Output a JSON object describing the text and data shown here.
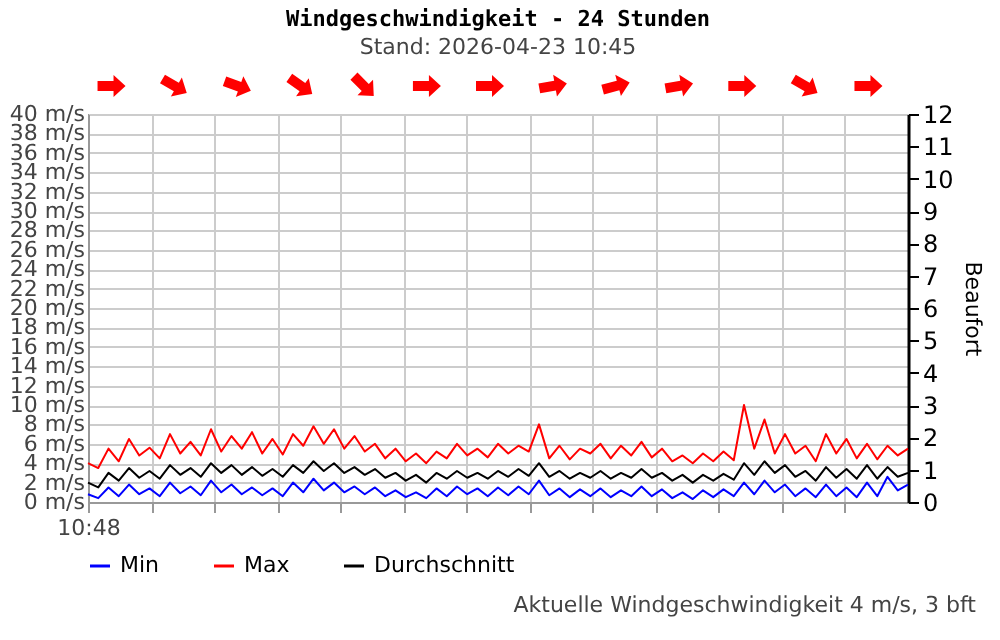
{
  "chart_data": {
    "type": "line",
    "title": "Windgeschwindigkeit - 24 Stunden",
    "subtitle": "Stand: 2026-04-23 10:45",
    "y2label": "Beaufort",
    "annotations": [
      "Aktuelle Windgeschwindigkeit 4 m/s, 3 bft"
    ],
    "categories": [
      "10:48",
      null,
      null,
      null,
      null,
      null,
      null,
      null,
      null,
      null,
      null,
      null,
      null,
      null,
      null,
      null,
      null,
      null,
      null,
      null,
      null,
      null,
      null,
      null,
      null,
      null,
      null,
      null,
      null,
      null,
      null,
      null,
      null,
      null,
      null,
      null,
      null,
      null,
      null,
      null,
      null,
      null,
      null,
      null,
      null,
      null,
      null,
      null,
      null,
      null,
      null,
      null,
      null,
      null,
      null,
      null,
      null,
      null,
      null,
      null,
      null,
      null,
      null,
      null,
      null,
      null,
      null,
      null,
      null,
      null,
      null,
      null,
      null,
      null,
      null,
      null,
      null,
      null,
      null,
      null,
      null
    ],
    "series": [
      {
        "name": "Min",
        "color": "#0000ff",
        "values": [
          0.8,
          0.4,
          1.5,
          0.6,
          1.8,
          0.8,
          1.4,
          0.6,
          2.0,
          0.9,
          1.6,
          0.7,
          2.2,
          1.0,
          1.8,
          0.8,
          1.5,
          0.7,
          1.4,
          0.6,
          2.0,
          1.0,
          2.4,
          1.2,
          2.0,
          1.0,
          1.6,
          0.8,
          1.5,
          0.6,
          1.2,
          0.5,
          1.0,
          0.4,
          1.4,
          0.6,
          1.6,
          0.8,
          1.4,
          0.6,
          1.5,
          0.7,
          1.6,
          0.8,
          2.2,
          0.7,
          1.4,
          0.5,
          1.3,
          0.6,
          1.4,
          0.5,
          1.2,
          0.6,
          1.6,
          0.6,
          1.3,
          0.4,
          1.0,
          0.3,
          1.2,
          0.5,
          1.3,
          0.6,
          2.0,
          0.8,
          2.2,
          1.0,
          1.8,
          0.6,
          1.4,
          0.5,
          1.8,
          0.6,
          1.5,
          0.5,
          2.0,
          0.6,
          2.6,
          1.2,
          1.8
        ]
      },
      {
        "name": "Max",
        "color": "#ff0000",
        "values": [
          4.0,
          3.5,
          5.5,
          4.2,
          6.5,
          4.8,
          5.6,
          4.5,
          7.0,
          5.0,
          6.2,
          4.8,
          7.5,
          5.2,
          6.8,
          5.5,
          7.2,
          5.0,
          6.5,
          4.9,
          7.0,
          5.8,
          7.8,
          6.0,
          7.5,
          5.5,
          6.8,
          5.2,
          6.0,
          4.5,
          5.5,
          4.2,
          5.0,
          4.0,
          5.2,
          4.5,
          6.0,
          4.8,
          5.5,
          4.6,
          6.0,
          5.0,
          5.8,
          5.2,
          8.0,
          4.5,
          5.8,
          4.4,
          5.5,
          5.0,
          6.0,
          4.5,
          5.8,
          4.8,
          6.2,
          4.6,
          5.5,
          4.2,
          4.8,
          4.0,
          5.0,
          4.2,
          5.2,
          4.3,
          10.0,
          5.5,
          8.5,
          5.0,
          7.0,
          5.0,
          5.8,
          4.2,
          7.0,
          5.0,
          6.5,
          4.5,
          6.0,
          4.4,
          5.8,
          4.8,
          5.5
        ]
      },
      {
        "name": "Durchschnitt",
        "color": "#000000",
        "values": [
          2.0,
          1.5,
          3.0,
          2.2,
          3.5,
          2.5,
          3.2,
          2.4,
          3.8,
          2.8,
          3.5,
          2.6,
          4.0,
          3.0,
          3.8,
          2.8,
          3.6,
          2.7,
          3.4,
          2.6,
          3.8,
          3.0,
          4.2,
          3.2,
          4.0,
          3.0,
          3.6,
          2.8,
          3.4,
          2.5,
          3.0,
          2.2,
          2.8,
          2.0,
          3.0,
          2.4,
          3.2,
          2.5,
          3.0,
          2.4,
          3.2,
          2.6,
          3.4,
          2.7,
          4.0,
          2.6,
          3.2,
          2.4,
          3.0,
          2.5,
          3.2,
          2.4,
          3.0,
          2.5,
          3.4,
          2.5,
          3.0,
          2.2,
          2.8,
          2.0,
          2.8,
          2.2,
          2.9,
          2.3,
          4.0,
          2.8,
          4.2,
          3.0,
          3.8,
          2.6,
          3.2,
          2.2,
          3.6,
          2.5,
          3.4,
          2.4,
          3.8,
          2.4,
          3.6,
          2.6,
          3.0
        ]
      }
    ],
    "ylim": [
      0,
      40
    ],
    "yticks": [
      {
        "value": 0,
        "label": "0 m/s"
      },
      {
        "value": 2,
        "label": "2 m/s"
      },
      {
        "value": 4,
        "label": "4 m/s"
      },
      {
        "value": 6,
        "label": "6 m/s"
      },
      {
        "value": 8,
        "label": "8 m/s"
      },
      {
        "value": 10,
        "label": "10 m/s"
      },
      {
        "value": 12,
        "label": "12 m/s"
      },
      {
        "value": 14,
        "label": "14 m/s"
      },
      {
        "value": 16,
        "label": "16 m/s"
      },
      {
        "value": 18,
        "label": "18 m/s"
      },
      {
        "value": 20,
        "label": "20 m/s"
      },
      {
        "value": 22,
        "label": "22 m/s"
      },
      {
        "value": 24,
        "label": "24 m/s"
      },
      {
        "value": 26,
        "label": "26 m/s"
      },
      {
        "value": 28,
        "label": "28 m/s"
      },
      {
        "value": 30,
        "label": "30 m/s"
      },
      {
        "value": 32,
        "label": "32 m/s"
      },
      {
        "value": 34,
        "label": "34 m/s"
      },
      {
        "value": 36,
        "label": "36 m/s"
      },
      {
        "value": 38,
        "label": "38 m/s"
      },
      {
        "value": 40,
        "label": "40 m/s"
      }
    ],
    "y2lim": [
      0,
      12
    ],
    "y2ticks": [
      0,
      1,
      2,
      3,
      4,
      5,
      6,
      7,
      8,
      9,
      10,
      11,
      12
    ],
    "grid": true,
    "legend": "bottom",
    "marker": "none",
    "line_style": "solid"
  }
}
